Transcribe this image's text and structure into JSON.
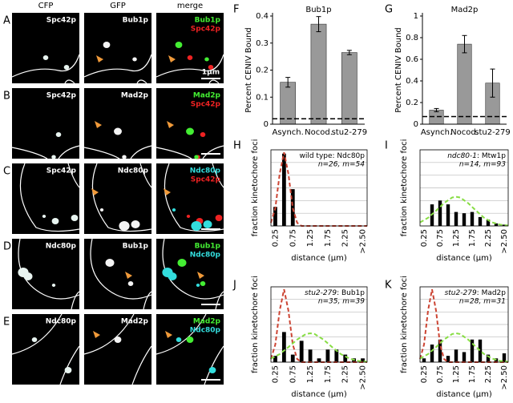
{
  "micrographs": {
    "columns": [
      "CFP",
      "GFP",
      "merge"
    ],
    "scale_bar_label": "1µm",
    "rows": [
      {
        "letter": "A",
        "cfp": "Spc42p",
        "gfp": "Bub1p",
        "merge": [
          {
            "text": "Bub1p",
            "color": "#44ee33"
          },
          {
            "text": "Spc42p",
            "color": "#ee2222"
          }
        ]
      },
      {
        "letter": "B",
        "cfp": "Spc42p",
        "gfp": "Mad2p",
        "merge": [
          {
            "text": "Mad2p",
            "color": "#44ee33"
          },
          {
            "text": "Spc42p",
            "color": "#ee2222"
          }
        ]
      },
      {
        "letter": "C",
        "cfp": "Spc42p",
        "gfp": "Ndc80p",
        "merge": [
          {
            "text": "Ndc80p",
            "color": "#33dddd"
          },
          {
            "text": "Spc42p",
            "color": "#ee2222"
          }
        ]
      },
      {
        "letter": "D",
        "cfp": "Ndc80p",
        "gfp": "Bub1p",
        "merge": [
          {
            "text": "Bub1p",
            "color": "#44ee33"
          },
          {
            "text": "Ndc80p",
            "color": "#33dddd"
          }
        ]
      },
      {
        "letter": "E",
        "cfp": "Ndc80p",
        "gfp": "Mad2p",
        "merge": [
          {
            "text": "Mad2p",
            "color": "#44ee33"
          },
          {
            "text": "Ndc80p",
            "color": "#33dddd"
          }
        ]
      }
    ]
  },
  "chart_data": [
    {
      "type": "bar",
      "letter": "F",
      "title": "Bub1p",
      "ylabel": "Percent CENIV Bound",
      "categories": [
        "Asynch.",
        "Nocod.",
        "stu2-279"
      ],
      "values": [
        0.155,
        0.37,
        0.265
      ],
      "errors": [
        0.018,
        0.028,
        0.008
      ],
      "reference_line": 0.02,
      "color": "#999999",
      "ylim": [
        0,
        0.4
      ],
      "yticks": [
        0,
        0.1,
        0.2,
        0.3,
        0.4
      ]
    },
    {
      "type": "bar",
      "letter": "G",
      "title": "Mad2p",
      "ylabel": "Percent CENIV Bound",
      "categories": [
        "Asynch.",
        "Nocod.",
        "stu2-279"
      ],
      "values": [
        0.13,
        0.74,
        0.38
      ],
      "errors": [
        0.015,
        0.08,
        0.13
      ],
      "reference_line": 0.07,
      "color": "#999999",
      "ylim": [
        0,
        1
      ],
      "yticks": [
        0,
        0.2,
        0.4,
        0.6,
        0.8,
        1
      ]
    },
    {
      "type": "histogram",
      "letter": "H",
      "annotation": "wild type: Ndc80p",
      "counts": "n=26, m=54",
      "ylabel": "fraction kinetochore foci",
      "xlabel": "distance (µm)",
      "categories": [
        "0.25",
        null,
        "0.75",
        null,
        "1.25",
        null,
        "1.75",
        null,
        "2.25",
        null,
        ">2.50"
      ],
      "values": [
        0.15,
        0.57,
        0.29,
        0,
        0,
        0,
        0,
        0,
        0,
        0,
        0
      ],
      "color": "#000000",
      "xlim": [
        0.125,
        2.875
      ],
      "ylim": [
        0,
        0.6
      ],
      "yticks": [
        0,
        0.1,
        0.2,
        0.3,
        0.4,
        0.5,
        0.6
      ],
      "grid": true,
      "curves": [
        {
          "color": "#cc4433",
          "x": [
            0.125,
            0.25,
            0.375,
            0.5,
            0.625,
            0.75,
            0.875,
            1.0,
            1.5,
            2.0,
            2.5,
            2.875
          ],
          "values": [
            0.025,
            0.14,
            0.41,
            0.58,
            0.41,
            0.14,
            0.025,
            0,
            0,
            0,
            0,
            0
          ]
        }
      ]
    },
    {
      "type": "histogram",
      "letter": "I",
      "genotype": "ndc80-1",
      "annotation": ": Mtw1p",
      "counts": "n=14, m=93",
      "ylabel": "fraction kinetochore foci",
      "xlabel": "distance (µm)",
      "categories": [
        "0.25",
        null,
        "0.75",
        null,
        "1.25",
        null,
        "1.75",
        null,
        "2.25",
        null,
        ">2.50"
      ],
      "values": [
        0,
        0.17,
        0.2,
        0.17,
        0.11,
        0.1,
        0.11,
        0.07,
        0.05,
        0.02,
        0.01
      ],
      "color": "#000000",
      "xlim": [
        0.125,
        2.875
      ],
      "ylim": [
        0,
        0.6
      ],
      "yticks": [
        0,
        0.1,
        0.2,
        0.3,
        0.4,
        0.5,
        0.6
      ],
      "grid": true,
      "curves": [
        {
          "color": "#88dd44",
          "x": [
            0.125,
            0.375,
            0.625,
            0.875,
            1.125,
            1.25,
            1.375,
            1.625,
            1.875,
            2.125,
            2.375,
            2.625,
            2.875
          ],
          "values": [
            0.028,
            0.064,
            0.12,
            0.18,
            0.224,
            0.23,
            0.224,
            0.18,
            0.12,
            0.064,
            0.028,
            0.01,
            0.003
          ]
        }
      ]
    },
    {
      "type": "histogram",
      "letter": "J",
      "genotype": "stu2-279",
      "annotation": ": Bub1p",
      "counts": "n=35, m=39",
      "ylabel": "fraction kinetochore foci",
      "xlabel": "distance (µm)",
      "categories": [
        "0.25",
        null,
        "0.75",
        null,
        "1.25",
        null,
        "1.75",
        null,
        "2.25",
        null,
        ">2.50"
      ],
      "values": [
        0.05,
        0.24,
        0.06,
        0.17,
        0.1,
        0.03,
        0.1,
        0.1,
        0.06,
        0.03,
        0.03
      ],
      "color": "#000000",
      "xlim": [
        0.125,
        2.875
      ],
      "ylim": [
        0,
        0.6
      ],
      "yticks": [
        0,
        0.1,
        0.2,
        0.3,
        0.4,
        0.5,
        0.6
      ],
      "grid": true,
      "curves": [
        {
          "color": "#cc4433",
          "x": [
            0.125,
            0.25,
            0.375,
            0.5,
            0.625,
            0.75,
            0.875,
            1.0,
            1.5,
            2.0,
            2.5,
            2.875
          ],
          "values": [
            0.025,
            0.14,
            0.41,
            0.58,
            0.41,
            0.14,
            0.025,
            0,
            0,
            0,
            0,
            0
          ]
        },
        {
          "color": "#88dd44",
          "x": [
            0.125,
            0.375,
            0.625,
            0.875,
            1.125,
            1.25,
            1.375,
            1.625,
            1.875,
            2.125,
            2.375,
            2.625,
            2.875
          ],
          "values": [
            0.028,
            0.064,
            0.12,
            0.18,
            0.224,
            0.23,
            0.224,
            0.18,
            0.12,
            0.064,
            0.028,
            0.01,
            0.003
          ]
        }
      ]
    },
    {
      "type": "histogram",
      "letter": "K",
      "genotype": "stu2-279",
      "annotation": ": Mad2p",
      "counts": "n=28, m=31",
      "ylabel": "fraction kinetochore foci",
      "xlabel": "distance (µm)",
      "categories": [
        "0.25",
        null,
        "0.75",
        null,
        "1.25",
        null,
        "1.75",
        null,
        "2.25",
        null,
        ">2.50"
      ],
      "values": [
        0.03,
        0.14,
        0.18,
        0.05,
        0.1,
        0.08,
        0.18,
        0.18,
        0.06,
        0.03,
        0.07
      ],
      "color": "#000000",
      "xlim": [
        0.125,
        2.875
      ],
      "ylim": [
        0,
        0.6
      ],
      "yticks": [
        0,
        0.1,
        0.2,
        0.3,
        0.4,
        0.5,
        0.6
      ],
      "grid": true,
      "curves": [
        {
          "color": "#cc4433",
          "x": [
            0.125,
            0.25,
            0.375,
            0.5,
            0.625,
            0.75,
            0.875,
            1.0,
            1.5,
            2.0,
            2.5,
            2.875
          ],
          "values": [
            0.025,
            0.14,
            0.41,
            0.58,
            0.41,
            0.14,
            0.025,
            0,
            0,
            0,
            0,
            0
          ]
        },
        {
          "color": "#88dd44",
          "x": [
            0.125,
            0.375,
            0.625,
            0.875,
            1.125,
            1.25,
            1.375,
            1.625,
            1.875,
            2.125,
            2.375,
            2.625,
            2.875
          ],
          "values": [
            0.028,
            0.064,
            0.12,
            0.18,
            0.224,
            0.23,
            0.224,
            0.18,
            0.12,
            0.064,
            0.028,
            0.01,
            0.003
          ]
        }
      ]
    }
  ]
}
